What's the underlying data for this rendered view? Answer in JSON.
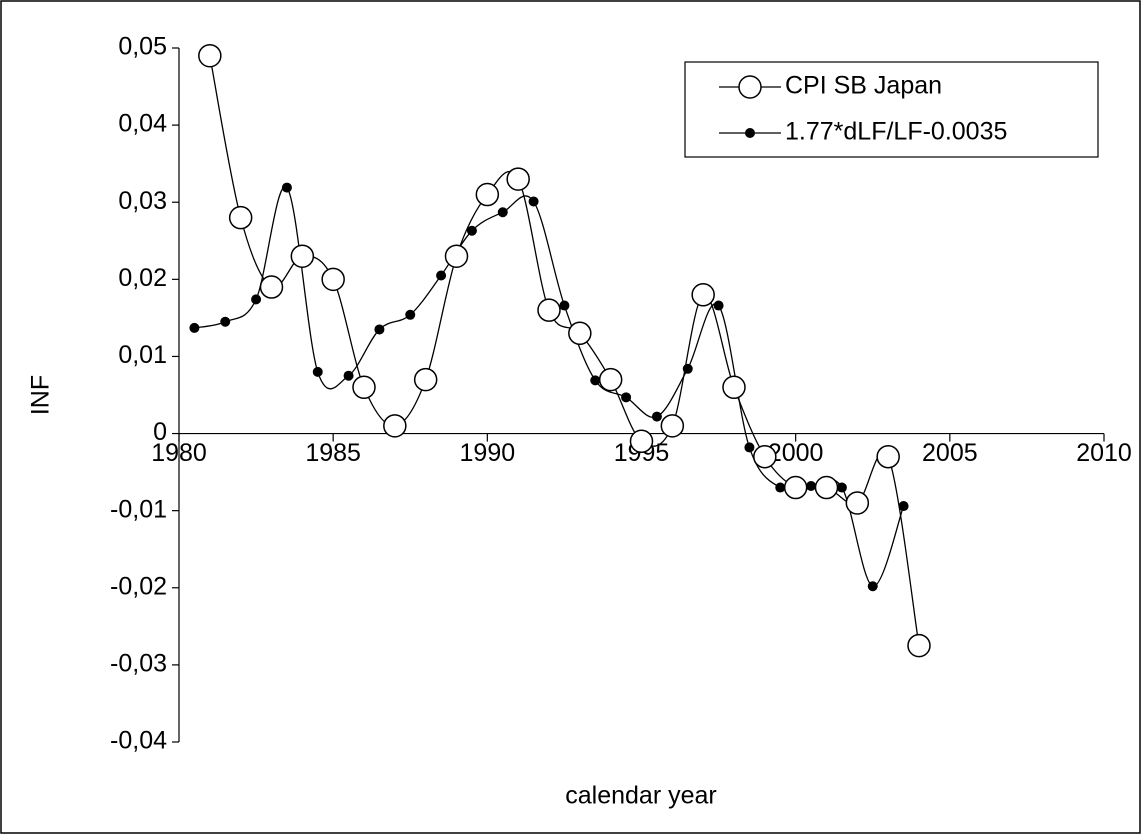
{
  "chart_data": {
    "type": "line",
    "x_label": "calendar year",
    "y_label": "INF",
    "xlim": [
      1980,
      2010
    ],
    "xticks": [
      1980,
      1985,
      1990,
      1995,
      2000,
      2005,
      2010
    ],
    "ylim": [
      -0.04,
      0.05
    ],
    "yticks": [
      {
        "value": -0.04,
        "label": "-0,04"
      },
      {
        "value": -0.03,
        "label": "-0,03"
      },
      {
        "value": -0.02,
        "label": "-0,02"
      },
      {
        "value": -0.01,
        "label": "-0,01"
      },
      {
        "value": 0,
        "label": "0"
      },
      {
        "value": 0.01,
        "label": "0,01"
      },
      {
        "value": 0.02,
        "label": "0,02"
      },
      {
        "value": 0.03,
        "label": "0,03"
      },
      {
        "value": 0.04,
        "label": "0,04"
      },
      {
        "value": 0.05,
        "label": "0,05"
      }
    ],
    "legend": "upper right",
    "series": [
      {
        "name": "CPI SB Japan",
        "color": "#000000",
        "marker": "open-circle",
        "x": [
          1981,
          1982,
          1983,
          1984,
          1985,
          1986,
          1987,
          1988,
          1989,
          1990,
          1991,
          1992,
          1993,
          1994,
          1995,
          1996,
          1997,
          1998,
          1999,
          2000,
          2001,
          2002,
          2003,
          2004
        ],
        "values": [
          0.049,
          0.028,
          0.019,
          0.023,
          0.02,
          0.006,
          0.001,
          0.007,
          0.023,
          0.031,
          0.033,
          0.016,
          0.013,
          0.007,
          -0.001,
          0.001,
          0.018,
          0.006,
          -0.003,
          -0.007,
          -0.007,
          -0.009,
          -0.003,
          -0.0275
        ]
      },
      {
        "name": "1.77*dLF/LF-0.0035",
        "color": "#000000",
        "marker": "filled-dot",
        "x": [
          1980.5,
          1981.5,
          1982.5,
          1983.5,
          1984.5,
          1985.5,
          1986.5,
          1987.5,
          1988.5,
          1989.5,
          1990.5,
          1991.5,
          1992.5,
          1993.5,
          1994.5,
          1995.5,
          1996.5,
          1997.5,
          1998.5,
          1999.5,
          2000.5,
          2001.5,
          2002.5,
          2003.5
        ],
        "values": [
          0.0137,
          0.0145,
          0.0174,
          0.0319,
          0.008,
          0.0075,
          0.0135,
          0.0154,
          0.0205,
          0.0263,
          0.0287,
          0.0301,
          0.0166,
          0.0069,
          0.0047,
          0.0022,
          0.0084,
          0.0166,
          -0.0018,
          -0.007,
          -0.0068,
          -0.007,
          -0.0198,
          -0.0094
        ]
      }
    ]
  }
}
